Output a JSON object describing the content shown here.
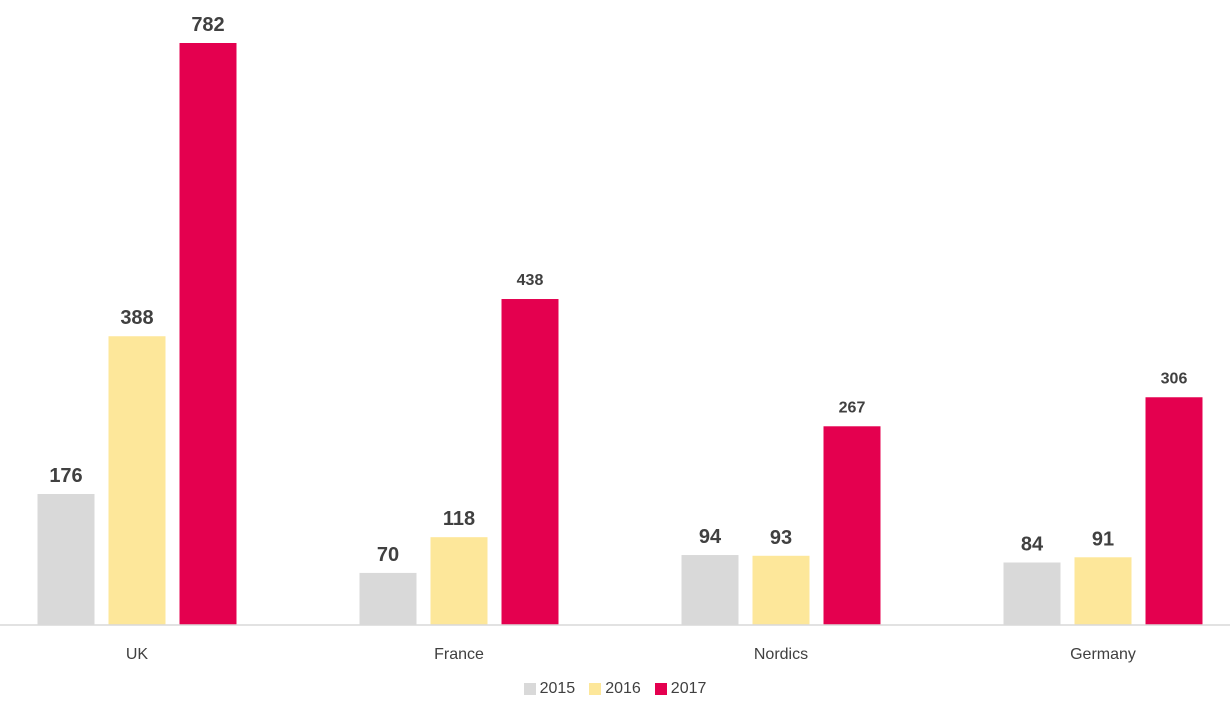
{
  "chart_data": {
    "type": "bar",
    "categories": [
      "UK",
      "France",
      "Nordics",
      "Germany"
    ],
    "series": [
      {
        "name": "2015",
        "values": [
          176,
          70,
          94,
          84
        ],
        "color": "#d9d9d9"
      },
      {
        "name": "2016",
        "values": [
          388,
          118,
          93,
          91
        ],
        "color": "#fde79a"
      },
      {
        "name": "2017",
        "values": [
          782,
          438,
          267,
          306
        ],
        "color": "#e4004f"
      }
    ],
    "title": "",
    "xlabel": "",
    "ylabel": "",
    "ylim": [
      0,
      782
    ],
    "grid": false,
    "legend": "bottom-center",
    "data_labels": true
  }
}
